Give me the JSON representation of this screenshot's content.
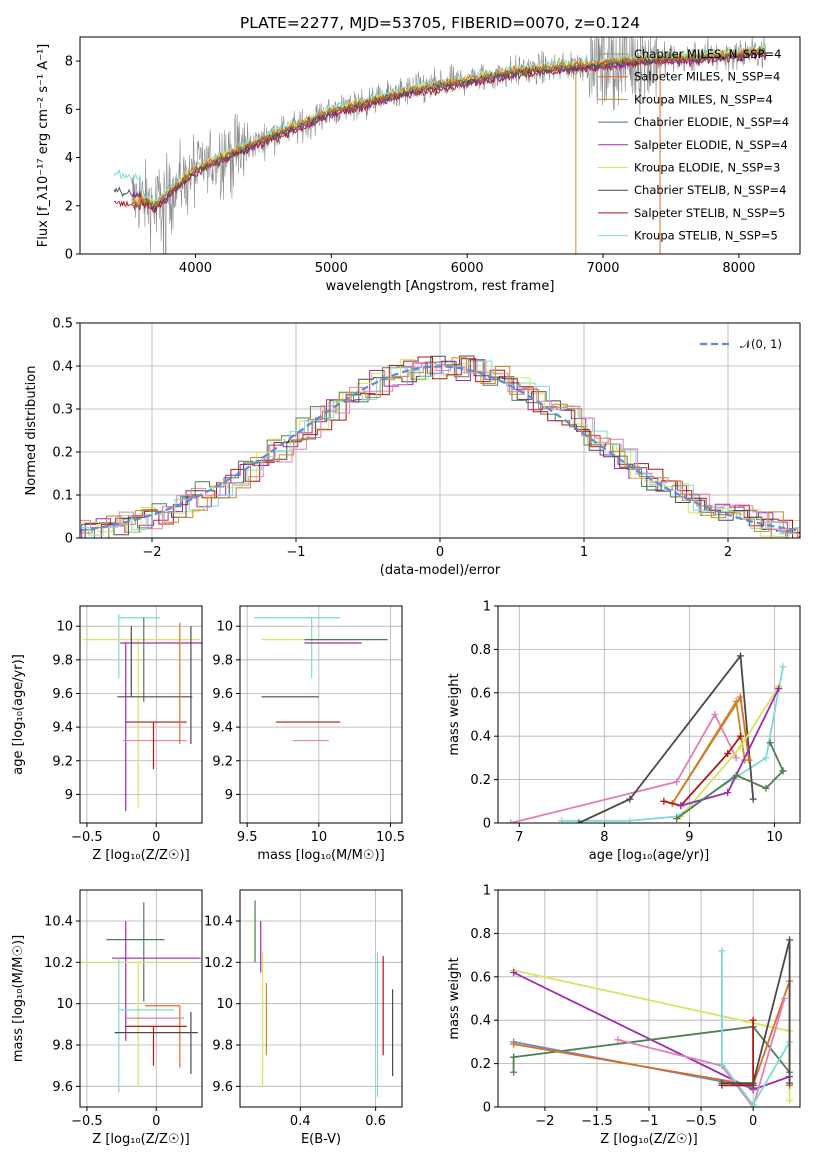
{
  "title": "PLATE=2277, MJD=53705, FIBERID=0070, z=0.124",
  "colors": {
    "Chabrier MILES": "#8f8f8f",
    "Salpeter MILES": "#e06c1a",
    "Kroupa MILES": "#c8892b",
    "Chabrier ELODIE": "#4f7f4f",
    "Salpeter ELODIE": "#a02ab0",
    "Kroupa ELODIE": "#d9e35b",
    "Chabrier STELIB": "#4a4a4a",
    "Salpeter STELIB": "#b01818",
    "Kroupa STELIB": "#7fd9d9",
    "pink": "#e07fb8",
    "blue": "#5b8bd9"
  },
  "chart_data": [
    {
      "id": "spectrum",
      "type": "line",
      "xlabel": "wavelength [Angstrom, rest frame]",
      "ylabel": "Flux [f_λ10⁻¹⁷ erg cm⁻² s⁻¹ A⁻¹]",
      "xlim": [
        3150,
        8450
      ],
      "ylim": [
        0,
        9
      ],
      "xticks": [
        4000,
        5000,
        6000,
        7000,
        8000
      ],
      "yticks": [
        0,
        2,
        4,
        6,
        8
      ],
      "legend": [
        {
          "name": "Chabrier MILES, N_SSP=4",
          "color": "#8f8f8f"
        },
        {
          "name": "Salpeter MILES, N_SSP=4",
          "color": "#e06c1a"
        },
        {
          "name": "Kroupa MILES, N_SSP=4",
          "color": "#c8892b"
        },
        {
          "name": "Chabrier ELODIE, N_SSP=4",
          "color": "#4f7f4f"
        },
        {
          "name": "Salpeter ELODIE, N_SSP=4",
          "color": "#a02ab0"
        },
        {
          "name": "Kroupa ELODIE, N_SSP=3",
          "color": "#d9e35b"
        },
        {
          "name": "Chabrier STELIB, N_SSP=4",
          "color": "#4a4a4a"
        },
        {
          "name": "Salpeter STELIB, N_SSP=5",
          "color": "#b01818"
        },
        {
          "name": "Kroupa STELIB, N_SSP=5",
          "color": "#7fd9d9"
        }
      ],
      "continuum": {
        "x": [
          3400,
          3600,
          3700,
          3800,
          3900,
          4000,
          4200,
          4400,
          4600,
          4800,
          5000,
          5200,
          5400,
          5600,
          5800,
          6000,
          6200,
          6400,
          6600,
          6800,
          7000,
          7200,
          7400,
          7600,
          7800,
          8000,
          8200
        ],
        "y": [
          2.5,
          2.3,
          2.0,
          2.5,
          3.0,
          3.5,
          4.0,
          4.5,
          5.0,
          5.4,
          5.9,
          6.2,
          6.5,
          6.8,
          7.0,
          7.2,
          7.4,
          7.6,
          7.7,
          7.8,
          7.9,
          8.0,
          8.1,
          8.1,
          8.2,
          8.3,
          8.4
        ]
      }
    },
    {
      "id": "residuals",
      "type": "step",
      "xlabel": "(data-model)/error",
      "ylabel": "Normed distribution",
      "xlim": [
        -2.5,
        2.5
      ],
      "ylim": [
        0,
        0.5
      ],
      "xticks": [
        -2,
        -1,
        0,
        1,
        2
      ],
      "yticks": [
        0.0,
        0.1,
        0.2,
        0.3,
        0.4,
        0.5
      ],
      "reference": {
        "name": "𝒩(0, 1)",
        "mean": 0,
        "sigma": 1,
        "color": "#5b8bd9"
      },
      "grid": true
    },
    {
      "id": "age_vs_Z",
      "type": "errorbar",
      "xlabel": "Z [log₁₀(Z/Z☉)]",
      "ylabel": "age  [log₁₀(age/yr)]",
      "xlim": [
        -0.55,
        0.33
      ],
      "ylim": [
        8.83,
        10.12
      ],
      "xticks": [
        -0.5,
        0.0
      ],
      "yticks": [
        9.0,
        9.2,
        9.4,
        9.6,
        9.8,
        10.0
      ],
      "series": [
        {
          "color": "#7fd9d9",
          "x": -0.27,
          "y": 10.05,
          "xerr": [
            0.0,
            0.3
          ],
          "yerr": [
            0.36,
            0.02
          ]
        },
        {
          "color": "#d9e35b",
          "x": -0.13,
          "y": 9.92,
          "xerr": [
            0.4,
            0.45
          ],
          "yerr": [
            1.0,
            0.0
          ]
        },
        {
          "color": "#a02ab0",
          "x": -0.22,
          "y": 9.9,
          "xerr": [
            0.04,
            0.6
          ],
          "yerr": [
            1.0,
            0.0
          ]
        },
        {
          "color": "#4f7f4f",
          "x": -0.09,
          "y": 10.05,
          "xerr": [
            0.0,
            0.0
          ],
          "yerr": [
            0.5,
            0.0
          ]
        },
        {
          "color": "#4a4a4a",
          "x": -0.18,
          "y": 9.58,
          "xerr": [
            0.1,
            0.44
          ],
          "yerr": [
            0.0,
            0.42
          ]
        },
        {
          "color": "#e07fb8",
          "x": 0.0,
          "y": 9.32,
          "xerr": [
            0.24,
            0.22
          ],
          "yerr": [
            0.0,
            0.0
          ]
        },
        {
          "color": "#b01818",
          "x": -0.02,
          "y": 9.43,
          "xerr": [
            0.2,
            0.24
          ],
          "yerr": [
            0.28,
            0.0
          ]
        },
        {
          "color": "#e06c1a",
          "x": 0.17,
          "y": 9.62,
          "xerr": [
            0.0,
            0.0
          ],
          "yerr": [
            0.32,
            0.4
          ]
        },
        {
          "color": "#4a4a4a",
          "x": 0.25,
          "y": 9.7,
          "xerr": [
            0.0,
            0.0
          ],
          "yerr": [
            0.4,
            0.3
          ]
        }
      ],
      "grid": true
    },
    {
      "id": "age_vs_mass",
      "type": "errorbar",
      "xlabel": "mass [log₁₀(M/M☉)]",
      "ylabel": "",
      "xlim": [
        9.45,
        10.58
      ],
      "ylim": [
        8.83,
        10.12
      ],
      "xticks": [
        9.5,
        10.0,
        10.5
      ],
      "yticks": [
        9.0,
        9.2,
        9.4,
        9.6,
        9.8,
        10.0
      ],
      "series": [
        {
          "color": "#7fd9d9",
          "x": 9.95,
          "y": 10.05,
          "xerr": [
            0.4,
            0.2
          ],
          "yerr": [
            0.36,
            0.0
          ]
        },
        {
          "color": "#d9e35b",
          "x": 9.9,
          "y": 9.92,
          "xerr": [
            0.3,
            0.35
          ],
          "yerr": [
            0.0,
            0.0
          ]
        },
        {
          "color": "#a02ab0",
          "x": 10.0,
          "y": 9.9,
          "xerr": [
            0.1,
            0.3
          ],
          "yerr": [
            0.0,
            0.0
          ]
        },
        {
          "color": "#4f7f4f",
          "x": 10.2,
          "y": 9.92,
          "xerr": [
            0.3,
            0.28
          ],
          "yerr": [
            0.0,
            0.0
          ]
        },
        {
          "color": "#4a4a4a",
          "x": 9.85,
          "y": 9.58,
          "xerr": [
            0.25,
            0.15
          ],
          "yerr": [
            0.0,
            0.0
          ]
        },
        {
          "color": "#e07fb8",
          "x": 9.95,
          "y": 9.32,
          "xerr": [
            0.13,
            0.12
          ],
          "yerr": [
            0.0,
            0.0
          ]
        },
        {
          "color": "#b01818",
          "x": 9.95,
          "y": 9.43,
          "xerr": [
            0.25,
            0.2
          ],
          "yerr": [
            0.0,
            0.0
          ]
        }
      ],
      "grid": true
    },
    {
      "id": "weight_vs_age",
      "type": "line",
      "xlabel": "age  [log₁₀(age/yr)]",
      "ylabel": "mass weight",
      "xlim": [
        6.75,
        10.3
      ],
      "ylim": [
        0,
        1.0
      ],
      "xticks": [
        7,
        8,
        9,
        10
      ],
      "yticks": [
        0.0,
        0.2,
        0.4,
        0.6,
        0.8,
        1.0
      ],
      "series": [
        {
          "color": "#e07fb8",
          "x": [
            6.9,
            8.85,
            9.3,
            9.55
          ],
          "y": [
            0.0,
            0.19,
            0.5,
            0.3
          ]
        },
        {
          "color": "#7fd9d9",
          "x": [
            7.5,
            8.3,
            8.85,
            9.5,
            9.9,
            10.1
          ],
          "y": [
            0.01,
            0.01,
            0.03,
            0.2,
            0.3,
            0.72
          ]
        },
        {
          "color": "#4a4a4a",
          "x": [
            7.7,
            8.3,
            9.6,
            9.75
          ],
          "y": [
            0.0,
            0.11,
            0.77,
            0.11
          ]
        },
        {
          "color": "#e06c1a",
          "x": [
            8.8,
            9.6,
            9.7
          ],
          "y": [
            0.09,
            0.58,
            0.29
          ]
        },
        {
          "color": "#c8892b",
          "x": [
            8.8,
            9.55,
            9.65
          ],
          "y": [
            0.09,
            0.56,
            0.29
          ]
        },
        {
          "color": "#b01818",
          "x": [
            8.7,
            8.9,
            9.45,
            9.6
          ],
          "y": [
            0.1,
            0.08,
            0.32,
            0.4
          ]
        },
        {
          "color": "#d9e35b",
          "x": [
            8.9,
            9.6,
            10.05
          ],
          "y": [
            0.03,
            0.35,
            0.63
          ]
        },
        {
          "color": "#a02ab0",
          "x": [
            8.9,
            9.45,
            10.05
          ],
          "y": [
            0.08,
            0.14,
            0.62
          ]
        },
        {
          "color": "#4f7f4f",
          "x": [
            8.85,
            9.55,
            9.9,
            10.1
          ],
          "y": [
            0.02,
            0.22,
            0.16,
            0.24
          ]
        },
        {
          "color": "#4f7f4f",
          "x": [
            9.95,
            10.1
          ],
          "y": [
            0.37,
            0.24
          ]
        }
      ],
      "grid": true
    },
    {
      "id": "mass_vs_Z",
      "type": "errorbar",
      "xlabel": "Z [log₁₀(Z/Z☉)]",
      "ylabel": "mass [log₁₀(M/M☉)]",
      "xlim": [
        -0.55,
        0.33
      ],
      "ylim": [
        9.5,
        10.55
      ],
      "xticks": [
        -0.5,
        0.0
      ],
      "yticks": [
        9.6,
        9.8,
        10.0,
        10.2,
        10.4
      ],
      "series": [
        {
          "color": "#4f7f4f",
          "x": -0.09,
          "y": 10.31,
          "xerr": [
            0.27,
            0.15
          ],
          "yerr": [
            0.3,
            0.18
          ]
        },
        {
          "color": "#a02ab0",
          "x": -0.22,
          "y": 10.22,
          "xerr": [
            0.1,
            0.54
          ],
          "yerr": [
            0.4,
            0.18
          ]
        },
        {
          "color": "#d9e35b",
          "x": -0.13,
          "y": 10.2,
          "xerr": [
            0.4,
            0.4
          ],
          "yerr": [
            0.6,
            0.0
          ]
        },
        {
          "color": "#7fd9d9",
          "x": -0.27,
          "y": 9.97,
          "xerr": [
            0.0,
            0.4
          ],
          "yerr": [
            0.4,
            0.25
          ]
        },
        {
          "color": "#e06c1a",
          "x": 0.17,
          "y": 9.99,
          "xerr": [
            0.25,
            0.0
          ],
          "yerr": [
            0.3,
            0.0
          ]
        },
        {
          "color": "#e07fb8",
          "x": -0.02,
          "y": 9.93,
          "xerr": [
            0.2,
            0.22
          ],
          "yerr": [
            0.0,
            0.0
          ]
        },
        {
          "color": "#b01818",
          "x": -0.02,
          "y": 9.89,
          "xerr": [
            0.2,
            0.24
          ],
          "yerr": [
            0.19,
            0.0
          ]
        },
        {
          "color": "#4a4a4a",
          "x": -0.05,
          "y": 9.86,
          "xerr": [
            0.25,
            0.35
          ],
          "yerr": [
            0.0,
            0.0
          ]
        },
        {
          "color": "#4a4a4a",
          "x": 0.25,
          "y": 9.86,
          "xerr": [
            0.0,
            0.0
          ],
          "yerr": [
            0.2,
            0.1
          ]
        }
      ],
      "grid": true
    },
    {
      "id": "mass_vs_EBV",
      "type": "errorbar",
      "xlabel": "E(B-V)",
      "ylabel": "",
      "xlim": [
        0.24,
        0.67
      ],
      "ylim": [
        9.5,
        10.55
      ],
      "xticks": [
        0.4,
        0.6
      ],
      "yticks": [
        9.6,
        9.8,
        10.0,
        10.2,
        10.4
      ],
      "series": [
        {
          "color": "#4f7f4f",
          "x": 0.28,
          "y": 10.3,
          "xerr": [
            0.0,
            0.0
          ],
          "yerr": [
            0.1,
            0.2
          ]
        },
        {
          "color": "#a02ab0",
          "x": 0.295,
          "y": 10.25,
          "xerr": [
            0.0,
            0.0
          ],
          "yerr": [
            0.1,
            0.15
          ]
        },
        {
          "color": "#d9e35b",
          "x": 0.3,
          "y": 10.1,
          "xerr": [
            0.0,
            0.0
          ],
          "yerr": [
            0.5,
            0.15
          ]
        },
        {
          "color": "#c8892b",
          "x": 0.31,
          "y": 9.95,
          "xerr": [
            0.0,
            0.0
          ],
          "yerr": [
            0.2,
            0.15
          ]
        },
        {
          "color": "#7fd9d9",
          "x": 0.605,
          "y": 9.95,
          "xerr": [
            0.0,
            0.0
          ],
          "yerr": [
            0.4,
            0.3
          ]
        },
        {
          "color": "#b01818",
          "x": 0.62,
          "y": 9.95,
          "xerr": [
            0.0,
            0.0
          ],
          "yerr": [
            0.2,
            0.28
          ]
        },
        {
          "color": "#4a4a4a",
          "x": 0.645,
          "y": 9.85,
          "xerr": [
            0.0,
            0.0
          ],
          "yerr": [
            0.2,
            0.22
          ]
        }
      ],
      "grid": true
    },
    {
      "id": "weight_vs_Z",
      "type": "line",
      "xlabel": "Z [log₁₀(Z/Z☉)]",
      "ylabel": "mass weight",
      "xlim": [
        -2.45,
        0.45
      ],
      "ylim": [
        0,
        1.0
      ],
      "xticks": [
        -2.0,
        -1.5,
        -1.0,
        -0.5,
        0.0
      ],
      "yticks": [
        0.0,
        0.2,
        0.4,
        0.6,
        0.8,
        1.0
      ],
      "series": [
        {
          "color": "#d9e35b",
          "x": [
            -2.3,
            0.35,
            0.35
          ],
          "y": [
            0.63,
            0.35,
            0.03
          ]
        },
        {
          "color": "#a02ab0",
          "x": [
            -2.3,
            0.0,
            0.35
          ],
          "y": [
            0.62,
            0.08,
            0.14
          ]
        },
        {
          "color": "#4f7f4f",
          "x": [
            -2.3,
            0.0,
            0.35
          ],
          "y": [
            0.23,
            0.37,
            0.16
          ]
        },
        {
          "color": "#4f7f4f",
          "x": [
            -2.3,
            -2.3
          ],
          "y": [
            0.23,
            0.16
          ]
        },
        {
          "color": "#5b8bd9",
          "x": [
            -2.3,
            0.0
          ],
          "y": [
            0.3,
            0.09
          ]
        },
        {
          "color": "#e06c1a",
          "x": [
            -2.3,
            0.0,
            0.35,
            0.35
          ],
          "y": [
            0.29,
            0.1,
            0.58,
            0.1
          ]
        },
        {
          "color": "#e07fb8",
          "x": [
            -1.3,
            -0.3,
            0.0,
            0.3
          ],
          "y": [
            0.31,
            0.19,
            0.0,
            0.5
          ]
        },
        {
          "color": "#7fd9d9",
          "x": [
            -0.3,
            -0.3,
            0.0,
            0.35
          ],
          "y": [
            0.72,
            0.2,
            0.01,
            0.3
          ]
        },
        {
          "color": "#b01818",
          "x": [
            -0.3,
            0.0,
            0.0
          ],
          "y": [
            0.1,
            0.1,
            0.4
          ]
        },
        {
          "color": "#4a4a4a",
          "x": [
            -0.3,
            0.0,
            0.35,
            0.35
          ],
          "y": [
            0.11,
            0.11,
            0.77,
            0.11
          ]
        }
      ],
      "grid": true
    }
  ]
}
